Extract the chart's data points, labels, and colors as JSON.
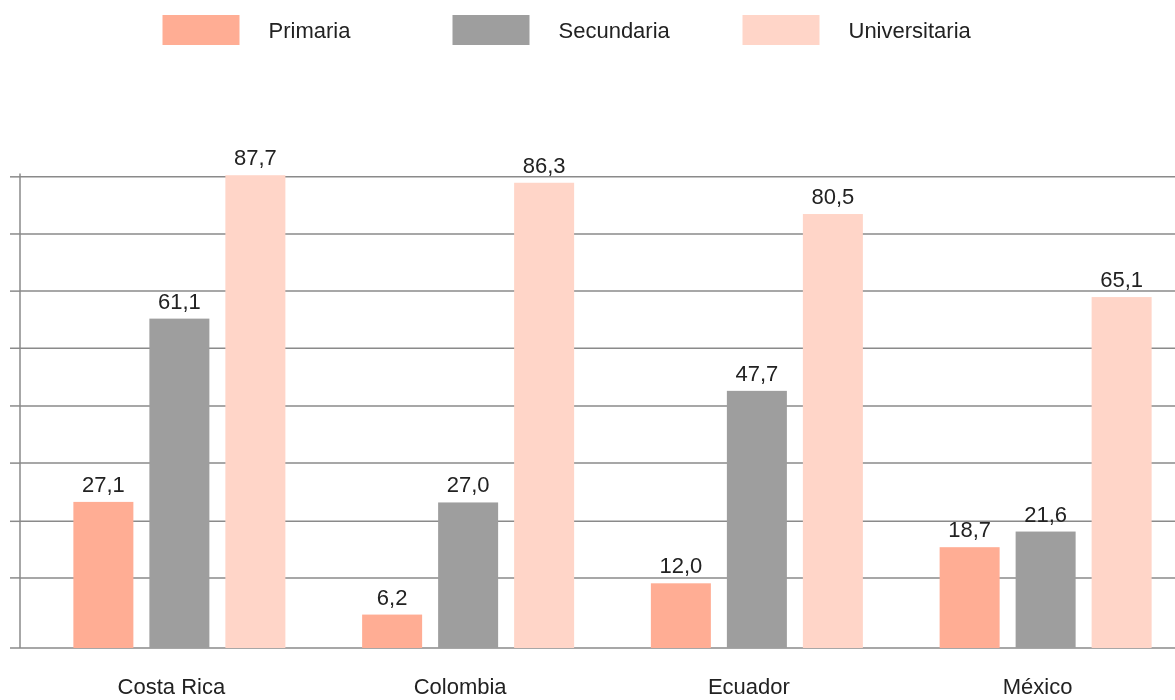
{
  "chart_data": {
    "type": "bar",
    "categories": [
      "Costa Rica",
      "Colombia",
      "Ecuador",
      "México"
    ],
    "series": [
      {
        "name": "Primaria",
        "color": "#ffad94",
        "values": [
          27.1,
          6.2,
          12.0,
          18.7
        ],
        "value_labels": [
          "27,1",
          "6,2",
          "12,0",
          "18,7"
        ]
      },
      {
        "name": "Secundaria",
        "color": "#9e9e9e",
        "values": [
          61.1,
          27.0,
          47.7,
          21.6
        ],
        "value_labels": [
          "61,1",
          "27,0",
          "47,7",
          "21,6"
        ]
      },
      {
        "name": "Universitaria",
        "color": "#ffd5c8",
        "values": [
          87.7,
          86.3,
          80.5,
          65.1
        ],
        "value_labels": [
          "87,7",
          "86,3",
          "80,5",
          "65,1"
        ]
      }
    ],
    "ylim": [
      0,
      88
    ],
    "yticks": [
      {
        "value": 0,
        "label": null
      },
      {
        "value": 13,
        "label": null
      },
      {
        "value": 23.5,
        "label": null
      },
      {
        "value": 34.3,
        "label": null
      },
      {
        "value": 44.9,
        "label": null
      },
      {
        "value": 55.6,
        "label": null
      },
      {
        "value": 66.2,
        "label": null
      },
      {
        "value": 76.8,
        "label": null
      },
      {
        "value": 87.4,
        "label": null
      }
    ],
    "grid": "y",
    "legend": "top",
    "tick_labels": "x"
  }
}
